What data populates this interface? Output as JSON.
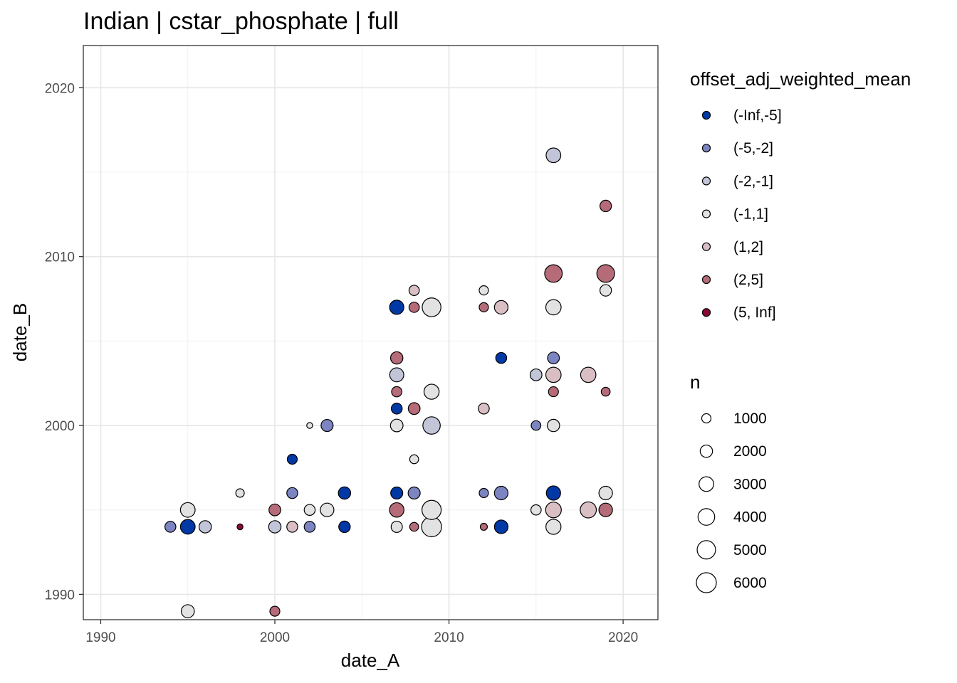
{
  "chart_data": {
    "type": "scatter",
    "title": "Indian | cstar_phosphate | full",
    "xlabel": "date_A",
    "ylabel": "date_B",
    "xlim": [
      1989,
      2022
    ],
    "ylim": [
      1988.5,
      2022.5
    ],
    "x_ticks": [
      "1990",
      "2000",
      "2010",
      "2020"
    ],
    "y_ticks": [
      "1990",
      "2000",
      "2010",
      "2020"
    ],
    "grid": true,
    "legend_position": "right",
    "color_legend": {
      "title": "offset_adj_weighted_mean",
      "entries": [
        {
          "label": "(-Inf,-5]",
          "color": "#0039a6"
        },
        {
          "label": "(-5,-2]",
          "color": "#7c85c1"
        },
        {
          "label": "(-2,-1]",
          "color": "#c2c5d8"
        },
        {
          "label": "(-1,1]",
          "color": "#e2e2e2"
        },
        {
          "label": "(1,2]",
          "color": "#d9bec4"
        },
        {
          "label": "(2,5]",
          "color": "#b66b78"
        },
        {
          "label": "(5, Inf]",
          "color": "#8b0a32"
        }
      ]
    },
    "size_legend": {
      "title": "n",
      "entries": [
        {
          "label": "1000",
          "value": 1000
        },
        {
          "label": "2000",
          "value": 2000
        },
        {
          "label": "3000",
          "value": 3000
        },
        {
          "label": "4000",
          "value": 4000
        },
        {
          "label": "5000",
          "value": 5000
        },
        {
          "label": "6000",
          "value": 6000
        }
      ]
    },
    "points": [
      {
        "x": 1994,
        "y": 1994,
        "n": 1500,
        "cat": "(-5,-2]"
      },
      {
        "x": 1995,
        "y": 1994,
        "n": 3000,
        "cat": "(-Inf,-5]"
      },
      {
        "x": 1995,
        "y": 1995,
        "n": 3000,
        "cat": "(-1,1]"
      },
      {
        "x": 1996,
        "y": 1994,
        "n": 2000,
        "cat": "(-2,-1]"
      },
      {
        "x": 1995,
        "y": 1989,
        "n": 2300,
        "cat": "(-1,1]"
      },
      {
        "x": 1998,
        "y": 1996,
        "n": 800,
        "cat": "(-1,1]"
      },
      {
        "x": 1998,
        "y": 1994,
        "n": 300,
        "cat": "(5, Inf]"
      },
      {
        "x": 2000,
        "y": 1995,
        "n": 1800,
        "cat": "(2,5]"
      },
      {
        "x": 2000,
        "y": 1994,
        "n": 2000,
        "cat": "(-2,-1]"
      },
      {
        "x": 2000,
        "y": 1989,
        "n": 1200,
        "cat": "(2,5]"
      },
      {
        "x": 2001,
        "y": 1998,
        "n": 1200,
        "cat": "(-Inf,-5]"
      },
      {
        "x": 2001,
        "y": 1996,
        "n": 1500,
        "cat": "(-5,-2]"
      },
      {
        "x": 2001,
        "y": 1994,
        "n": 1500,
        "cat": "(1,2]"
      },
      {
        "x": 2002,
        "y": 2000,
        "n": 300,
        "cat": "(-1,1]"
      },
      {
        "x": 2002,
        "y": 1995,
        "n": 1500,
        "cat": "(-1,1]"
      },
      {
        "x": 2002,
        "y": 1994,
        "n": 1500,
        "cat": "(-5,-2]"
      },
      {
        "x": 2003,
        "y": 2000,
        "n": 1900,
        "cat": "(-5,-2]"
      },
      {
        "x": 2003,
        "y": 1995,
        "n": 2500,
        "cat": "(-1,1]"
      },
      {
        "x": 2004,
        "y": 1996,
        "n": 2000,
        "cat": "(-Inf,-5]"
      },
      {
        "x": 2004,
        "y": 1994,
        "n": 1700,
        "cat": "(-Inf,-5]"
      },
      {
        "x": 2007,
        "y": 2007,
        "n": 2800,
        "cat": "(-Inf,-5]"
      },
      {
        "x": 2007,
        "y": 2004,
        "n": 2000,
        "cat": "(2,5]"
      },
      {
        "x": 2007,
        "y": 2003,
        "n": 2700,
        "cat": "(-2,-1]"
      },
      {
        "x": 2007,
        "y": 2002,
        "n": 1300,
        "cat": "(2,5]"
      },
      {
        "x": 2007,
        "y": 2001,
        "n": 1500,
        "cat": "(-Inf,-5]"
      },
      {
        "x": 2007,
        "y": 2000,
        "n": 2100,
        "cat": "(-1,1]"
      },
      {
        "x": 2007,
        "y": 1996,
        "n": 1900,
        "cat": "(-Inf,-5]"
      },
      {
        "x": 2007,
        "y": 1995,
        "n": 2900,
        "cat": "(2,5]"
      },
      {
        "x": 2007,
        "y": 1994,
        "n": 1600,
        "cat": "(-1,1]"
      },
      {
        "x": 2008,
        "y": 2008,
        "n": 1300,
        "cat": "(1,2]"
      },
      {
        "x": 2008,
        "y": 2007,
        "n": 1300,
        "cat": "(2,5]"
      },
      {
        "x": 2008,
        "y": 2001,
        "n": 1800,
        "cat": "(2,5]"
      },
      {
        "x": 2008,
        "y": 1998,
        "n": 900,
        "cat": "(-1,1]"
      },
      {
        "x": 2008,
        "y": 1996,
        "n": 1900,
        "cat": "(-5,-2]"
      },
      {
        "x": 2008,
        "y": 1994,
        "n": 900,
        "cat": "(2,5]"
      },
      {
        "x": 2009,
        "y": 2007,
        "n": 5200,
        "cat": "(-1,1]"
      },
      {
        "x": 2009,
        "y": 2002,
        "n": 3200,
        "cat": "(-1,1]"
      },
      {
        "x": 2009,
        "y": 2000,
        "n": 4400,
        "cat": "(-2,-1]"
      },
      {
        "x": 2009,
        "y": 1995,
        "n": 5500,
        "cat": "(-1,1]"
      },
      {
        "x": 2009,
        "y": 1994,
        "n": 6000,
        "cat": "(-1,1]"
      },
      {
        "x": 2012,
        "y": 2008,
        "n": 1000,
        "cat": "(-1,1]"
      },
      {
        "x": 2012,
        "y": 2007,
        "n": 1000,
        "cat": "(2,5]"
      },
      {
        "x": 2012,
        "y": 2001,
        "n": 1500,
        "cat": "(1,2]"
      },
      {
        "x": 2012,
        "y": 1996,
        "n": 1000,
        "cat": "(-5,-2]"
      },
      {
        "x": 2012,
        "y": 1994,
        "n": 500,
        "cat": "(2,5]"
      },
      {
        "x": 2013,
        "y": 2007,
        "n": 2500,
        "cat": "(1,2]"
      },
      {
        "x": 2013,
        "y": 2004,
        "n": 1500,
        "cat": "(-Inf,-5]"
      },
      {
        "x": 2013,
        "y": 1996,
        "n": 2500,
        "cat": "(-5,-2]"
      },
      {
        "x": 2013,
        "y": 1994,
        "n": 2500,
        "cat": "(-Inf,-5]"
      },
      {
        "x": 2015,
        "y": 2003,
        "n": 1800,
        "cat": "(-2,-1]"
      },
      {
        "x": 2015,
        "y": 2000,
        "n": 1100,
        "cat": "(-5,-2]"
      },
      {
        "x": 2015,
        "y": 1995,
        "n": 1300,
        "cat": "(-1,1]"
      },
      {
        "x": 2016,
        "y": 2016,
        "n": 3000,
        "cat": "(-2,-1]"
      },
      {
        "x": 2016,
        "y": 2009,
        "n": 4500,
        "cat": "(2,5]"
      },
      {
        "x": 2016,
        "y": 2007,
        "n": 3300,
        "cat": "(-1,1]"
      },
      {
        "x": 2016,
        "y": 2004,
        "n": 1800,
        "cat": "(-5,-2]"
      },
      {
        "x": 2016,
        "y": 2003,
        "n": 3300,
        "cat": "(1,2]"
      },
      {
        "x": 2016,
        "y": 2002,
        "n": 1200,
        "cat": "(2,5]"
      },
      {
        "x": 2016,
        "y": 2000,
        "n": 2000,
        "cat": "(-1,1]"
      },
      {
        "x": 2016,
        "y": 1996,
        "n": 2800,
        "cat": "(-Inf,-5]"
      },
      {
        "x": 2016,
        "y": 1995,
        "n": 3500,
        "cat": "(1,2]"
      },
      {
        "x": 2016,
        "y": 1994,
        "n": 3200,
        "cat": "(-1,1]"
      },
      {
        "x": 2018,
        "y": 2003,
        "n": 3300,
        "cat": "(1,2]"
      },
      {
        "x": 2018,
        "y": 1995,
        "n": 3700,
        "cat": "(1,2]"
      },
      {
        "x": 2019,
        "y": 2013,
        "n": 1700,
        "cat": "(2,5]"
      },
      {
        "x": 2019,
        "y": 2009,
        "n": 4600,
        "cat": "(2,5]"
      },
      {
        "x": 2019,
        "y": 2008,
        "n": 1700,
        "cat": "(-1,1]"
      },
      {
        "x": 2019,
        "y": 2002,
        "n": 900,
        "cat": "(2,5]"
      },
      {
        "x": 2019,
        "y": 1996,
        "n": 2500,
        "cat": "(-1,1]"
      },
      {
        "x": 2019,
        "y": 1995,
        "n": 2500,
        "cat": "(2,5]"
      }
    ]
  }
}
